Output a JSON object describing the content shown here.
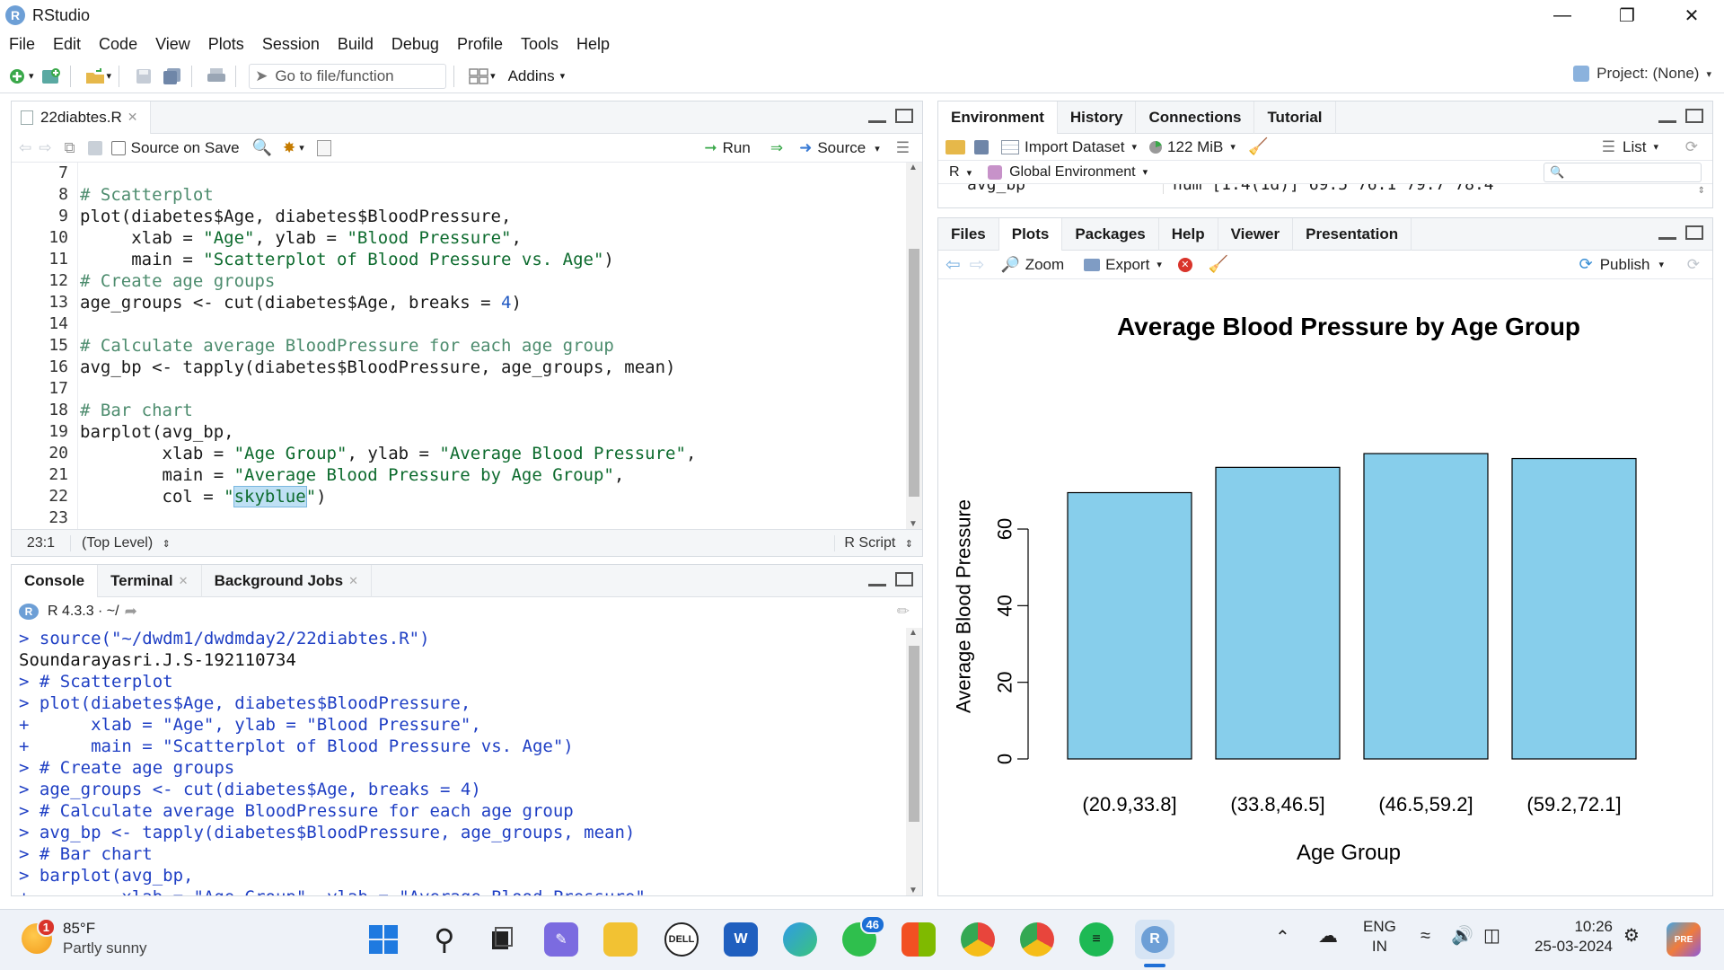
{
  "window": {
    "title": "RStudio",
    "logo": "R"
  },
  "menu": [
    "File",
    "Edit",
    "Code",
    "View",
    "Plots",
    "Session",
    "Build",
    "Debug",
    "Profile",
    "Tools",
    "Help"
  ],
  "toolbar": {
    "goto_placeholder": "Go to file/function",
    "addins": "Addins",
    "project": "Project: (None)"
  },
  "editor": {
    "tab": "22diabtes.R",
    "source_on_save": "Source on Save",
    "run": "Run",
    "source": "Source",
    "line_numbers": [
      "7",
      "8",
      "9",
      "10",
      "11",
      "12",
      "13",
      "14",
      "15",
      "16",
      "17",
      "18",
      "19",
      "20",
      "21",
      "22",
      "23"
    ],
    "status_position": "23:1",
    "status_scope": "(Top Level)",
    "status_type": "R Script"
  },
  "console": {
    "tabs": [
      "Console",
      "Terminal",
      "Background Jobs"
    ],
    "version": "R 4.3.3 · ~/",
    "lines": [
      {
        "t": "> source(\"~/dwdm1/dwdmday2/22diabtes.R\")",
        "k": "in"
      },
      {
        "t": "Soundarayasri.J.S-192110734",
        "k": "out"
      },
      {
        "t": "> # Scatterplot",
        "k": "in"
      },
      {
        "t": "> plot(diabetes$Age, diabetes$BloodPressure,",
        "k": "in"
      },
      {
        "t": "+      xlab = \"Age\", ylab = \"Blood Pressure\",",
        "k": "in"
      },
      {
        "t": "+      main = \"Scatterplot of Blood Pressure vs. Age\")",
        "k": "in"
      },
      {
        "t": "> # Create age groups",
        "k": "in"
      },
      {
        "t": "> age_groups <- cut(diabetes$Age, breaks = 4)",
        "k": "in"
      },
      {
        "t": "> # Calculate average BloodPressure for each age group",
        "k": "in"
      },
      {
        "t": "> avg_bp <- tapply(diabetes$BloodPressure, age_groups, mean)",
        "k": "in"
      },
      {
        "t": "> # Bar chart",
        "k": "in"
      },
      {
        "t": "> barplot(avg_bp,",
        "k": "in"
      },
      {
        "t": "+         xlab = \"Age Group\", ylab = \"Average Blood Pressure\",",
        "k": "in"
      }
    ]
  },
  "environment": {
    "tabs": [
      "Environment",
      "History",
      "Connections",
      "Tutorial"
    ],
    "import_dataset": "Import Dataset",
    "memory": "122 MiB",
    "view_mode": "List",
    "lang": "R",
    "scope": "Global Environment",
    "row_name": "avg_bp",
    "row_value": "num [1:4(1d)] 69.5 76.1 79.7 78.4"
  },
  "files": {
    "tabs": [
      "Files",
      "Plots",
      "Packages",
      "Help",
      "Viewer",
      "Presentation"
    ],
    "zoom": "Zoom",
    "export": "Export",
    "publish": "Publish"
  },
  "chart_data": {
    "type": "bar",
    "title": "Average Blood Pressure by Age Group",
    "xlabel": "Age Group",
    "ylabel": "Average Blood Pressure",
    "categories": [
      "(20.9,33.8]",
      "(33.8,46.5]",
      "(46.5,59.2]",
      "(59.2,72.1]"
    ],
    "values": [
      69.5,
      76.1,
      79.7,
      78.4
    ],
    "yticks": [
      "0",
      "20",
      "40",
      "60"
    ],
    "ylim": [
      0,
      80
    ],
    "color": "#87ceeb"
  },
  "taskbar": {
    "weather_temp": "85°F",
    "weather_desc": "Partly sunny",
    "weather_badge": "1",
    "whatsapp_badge": "46",
    "lang_top": "ENG",
    "lang_bottom": "IN",
    "time": "10:26",
    "date": "25-03-2024"
  }
}
